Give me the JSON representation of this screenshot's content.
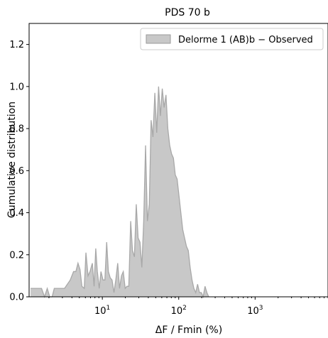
{
  "chart_data": {
    "type": "area",
    "title": "PDS 70 b",
    "xlabel": "ΔF / Fmin (%)",
    "ylabel": "Cumulative distribution",
    "xscale": "log",
    "xlim": [
      1.1,
      9000
    ],
    "ylim": [
      0.0,
      1.3
    ],
    "xticks": [
      {
        "value": 10,
        "base": "10",
        "exp": "1"
      },
      {
        "value": 100,
        "base": "10",
        "exp": "2"
      },
      {
        "value": 1000,
        "base": "10",
        "exp": "3"
      }
    ],
    "yticks": [
      "0.0",
      "0.2",
      "0.4",
      "0.6",
      "0.8",
      "1.0",
      "1.2"
    ],
    "grid": false,
    "legend_position": "top-right",
    "colors": {
      "fill": "#c8c8c8",
      "edge": "#a8a8a8",
      "legend_edge": "#9a9a9a"
    },
    "series": [
      {
        "name": "Delorme 1 (AB)b − Observed",
        "x": [
          1.15,
          1.6,
          1.75,
          1.9,
          2.05,
          2.2,
          2.35,
          2.5,
          3.2,
          3.8,
          4.2,
          4.5,
          4.8,
          5.1,
          5.4,
          5.8,
          6.1,
          6.5,
          6.9,
          7.4,
          7.8,
          8.2,
          8.6,
          9.1,
          9.6,
          10.2,
          10.8,
          11.4,
          12.0,
          12.7,
          13.4,
          14.2,
          15.0,
          15.9,
          16.8,
          17.8,
          18.8,
          19.9,
          21.0,
          22.2,
          23.5,
          24.8,
          26.3,
          27.8,
          29.4,
          31.1,
          32.9,
          34.8,
          36.8,
          38.9,
          41.2,
          43.5,
          46.0,
          48.7,
          51.5,
          54.5,
          57.6,
          60.9,
          64.4,
          68.1,
          72.0,
          76.2,
          80.6,
          85.2,
          90.1,
          95.3,
          100.8,
          106.6,
          112.8,
          119.3,
          126.2,
          133.4,
          141.1,
          149.3,
          157.9,
          167.0,
          176.6,
          186.8,
          197.5,
          208.9,
          220.9,
          233.7,
          247.1
        ],
        "y": [
          0.04,
          0.04,
          0.0,
          0.04,
          0.0,
          0.0,
          0.04,
          0.04,
          0.04,
          0.08,
          0.12,
          0.12,
          0.16,
          0.13,
          0.05,
          0.04,
          0.21,
          0.1,
          0.12,
          0.16,
          0.05,
          0.23,
          0.12,
          0.04,
          0.12,
          0.08,
          0.08,
          0.26,
          0.12,
          0.09,
          0.08,
          0.02,
          0.08,
          0.16,
          0.04,
          0.1,
          0.12,
          0.04,
          0.05,
          0.05,
          0.36,
          0.22,
          0.19,
          0.44,
          0.28,
          0.26,
          0.14,
          0.36,
          0.72,
          0.36,
          0.44,
          0.84,
          0.76,
          0.97,
          0.78,
          1.0,
          0.86,
          0.99,
          0.9,
          0.96,
          0.8,
          0.72,
          0.68,
          0.66,
          0.58,
          0.56,
          0.48,
          0.4,
          0.32,
          0.28,
          0.24,
          0.22,
          0.14,
          0.08,
          0.04,
          0.02,
          0.06,
          0.02,
          0.02,
          0.0,
          0.05,
          0.02,
          0.0
        ]
      }
    ]
  }
}
